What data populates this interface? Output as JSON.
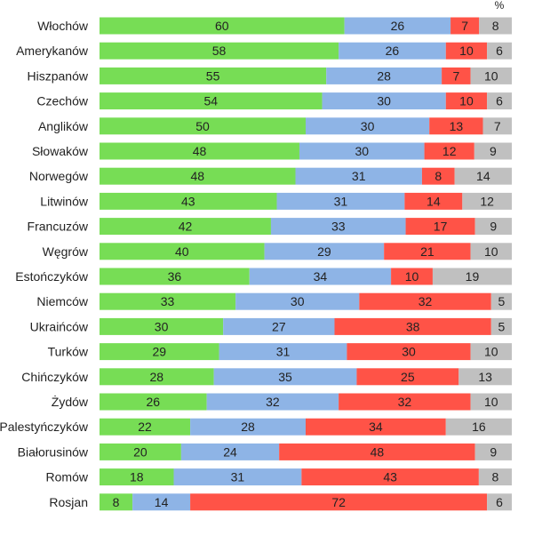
{
  "chart_data": {
    "type": "bar",
    "orientation": "horizontal",
    "stacked": true,
    "unit": "%",
    "categories": [
      "Włochów",
      "Amerykanów",
      "Hiszpanów",
      "Czechów",
      "Anglików",
      "Słowaków",
      "Norwegów",
      "Litwinów",
      "Francuzów",
      "Węgrów",
      "Estończyków",
      "Niemców",
      "Ukraińców",
      "Turków",
      "Chińczyków",
      "Żydów",
      "Palestyńczyków",
      "Białorusinów",
      "Romów",
      "Rosjan"
    ],
    "series": [
      {
        "name": "green",
        "color": "#77dd55",
        "values": [
          60,
          58,
          55,
          54,
          50,
          48,
          48,
          43,
          42,
          40,
          36,
          33,
          30,
          29,
          28,
          26,
          22,
          20,
          18,
          8
        ]
      },
      {
        "name": "blue",
        "color": "#8eb4e6",
        "values": [
          26,
          26,
          28,
          30,
          30,
          30,
          31,
          31,
          33,
          29,
          34,
          30,
          27,
          31,
          35,
          32,
          28,
          24,
          31,
          14
        ]
      },
      {
        "name": "red",
        "color": "#ff5347",
        "values": [
          7,
          10,
          7,
          10,
          13,
          12,
          8,
          14,
          17,
          21,
          10,
          32,
          38,
          30,
          25,
          32,
          34,
          48,
          43,
          72
        ]
      },
      {
        "name": "grey",
        "color": "#c0c0c0",
        "values": [
          8,
          6,
          10,
          6,
          7,
          9,
          14,
          12,
          9,
          10,
          19,
          5,
          5,
          10,
          13,
          10,
          16,
          9,
          8,
          6
        ]
      }
    ],
    "legend": "none",
    "grid": false,
    "title": "",
    "xlabel": "",
    "ylabel": ""
  }
}
